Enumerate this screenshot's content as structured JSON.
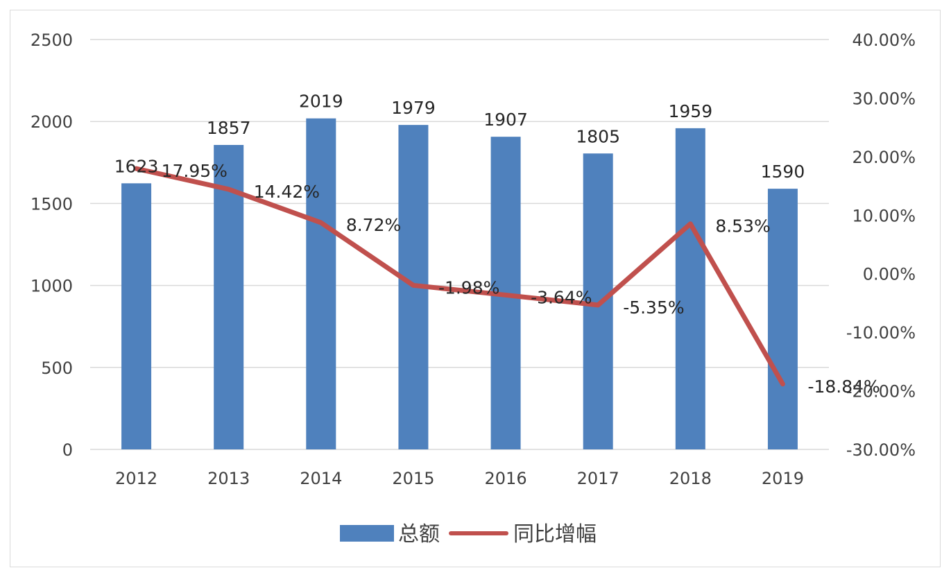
{
  "chart_data": {
    "type": "bar+line",
    "categories": [
      "2012",
      "2013",
      "2014",
      "2015",
      "2016",
      "2017",
      "2018",
      "2019"
    ],
    "series": [
      {
        "name": "总额",
        "type": "bar",
        "axis": "left",
        "values": [
          1623,
          1857,
          2019,
          1979,
          1907,
          1805,
          1959,
          1590
        ],
        "labels": [
          "1623",
          "1857",
          "2019",
          "1979",
          "1907",
          "1805",
          "1959",
          "1590"
        ]
      },
      {
        "name": "同比增幅",
        "type": "line",
        "axis": "right",
        "values": [
          17.95,
          14.42,
          8.72,
          -1.98,
          -3.64,
          -5.35,
          8.53,
          -18.84
        ],
        "labels": [
          "17.95%",
          "14.42%",
          "8.72%",
          "-1.98%",
          "-3.64%",
          "-5.35%",
          "8.53%",
          "-18.84%"
        ]
      }
    ],
    "y_left": {
      "min": 0,
      "max": 2500,
      "ticks": [
        "0",
        "500",
        "1000",
        "1500",
        "2000",
        "2500"
      ]
    },
    "y_right": {
      "min": -30,
      "max": 40,
      "ticks": [
        "-30.00%",
        "-20.00%",
        "-10.00%",
        "0.00%",
        "10.00%",
        "20.00%",
        "30.00%",
        "40.00%"
      ]
    },
    "grid": true,
    "legend_position": "bottom",
    "colors": {
      "bar": "#4f81bd",
      "line": "#c0504d",
      "grid": "#d9d9d9"
    }
  }
}
